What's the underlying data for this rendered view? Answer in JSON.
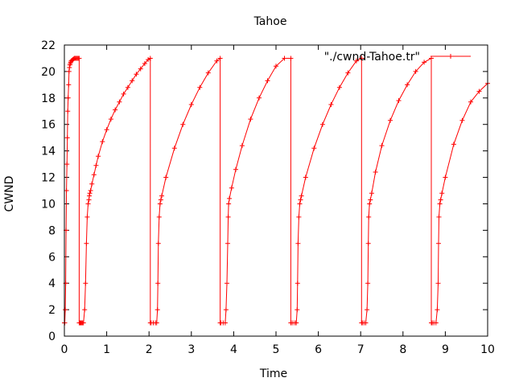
{
  "chart_data": {
    "type": "line",
    "title": "Tahoe",
    "xlabel": "Time",
    "ylabel": "CWND",
    "xlim": [
      0,
      10
    ],
    "ylim": [
      0,
      22
    ],
    "x_ticks": [
      "0",
      "1",
      "2",
      "3",
      "4",
      "5",
      "6",
      "7",
      "8",
      "9",
      "10"
    ],
    "y_ticks": [
      "0",
      "2",
      "4",
      "6",
      "8",
      "10",
      "12",
      "14",
      "16",
      "18",
      "20",
      "22"
    ],
    "grid": false,
    "legend_position": "top-right",
    "series": [
      {
        "name": "\"./cwnd-Tahoe.tr\"",
        "color": "#ff0000",
        "marker": "plus",
        "x": [
          0.0,
          0.01,
          0.02,
          0.03,
          0.04,
          0.05,
          0.06,
          0.07,
          0.08,
          0.09,
          0.1,
          0.11,
          0.12,
          0.13,
          0.14,
          0.15,
          0.16,
          0.18,
          0.2,
          0.22,
          0.24,
          0.26,
          0.28,
          0.3,
          0.32,
          0.34,
          0.35,
          0.35,
          0.37,
          0.39,
          0.41,
          0.43,
          0.45,
          0.48,
          0.5,
          0.52,
          0.54,
          0.56,
          0.58,
          0.59,
          0.6,
          0.62,
          0.65,
          0.7,
          0.75,
          0.8,
          0.9,
          1.0,
          1.1,
          1.2,
          1.3,
          1.4,
          1.5,
          1.6,
          1.7,
          1.8,
          1.9,
          1.98,
          2.03,
          2.03,
          2.05,
          2.1,
          2.15,
          2.18,
          2.2,
          2.21,
          2.22,
          2.24,
          2.26,
          2.28,
          2.3,
          2.4,
          2.6,
          2.8,
          3.0,
          3.2,
          3.4,
          3.6,
          3.68,
          3.68,
          3.7,
          3.75,
          3.8,
          3.82,
          3.84,
          3.86,
          3.87,
          3.88,
          3.9,
          3.95,
          4.05,
          4.2,
          4.4,
          4.6,
          4.8,
          5.0,
          5.2,
          5.35,
          5.35,
          5.36,
          5.4,
          5.45,
          5.48,
          5.5,
          5.51,
          5.52,
          5.54,
          5.56,
          5.58,
          5.6,
          5.7,
          5.9,
          6.1,
          6.3,
          6.5,
          6.7,
          6.9,
          7.02,
          7.02,
          7.04,
          7.08,
          7.12,
          7.15,
          7.17,
          7.18,
          7.19,
          7.21,
          7.23,
          7.26,
          7.35,
          7.5,
          7.7,
          7.9,
          8.1,
          8.3,
          8.5,
          8.67,
          8.67,
          8.69,
          8.73,
          8.78,
          8.81,
          8.83,
          8.84,
          8.85,
          8.87,
          8.89,
          8.92,
          9.0,
          9.2,
          9.4,
          9.6,
          9.8,
          10.0
        ],
        "y": [
          1,
          1,
          2,
          4,
          8,
          11,
          13,
          15,
          17,
          18,
          19,
          20,
          20.3,
          20.5,
          20.6,
          20.7,
          20.8,
          20.85,
          20.9,
          20.95,
          21,
          21,
          21,
          21,
          21,
          21,
          21,
          1,
          1,
          1,
          1,
          1,
          1,
          2,
          4,
          7,
          9,
          10,
          10.3,
          10.6,
          10.8,
          11,
          11.5,
          12.2,
          12.9,
          13.6,
          14.7,
          15.6,
          16.4,
          17.1,
          17.7,
          18.3,
          18.8,
          19.3,
          19.8,
          20.2,
          20.6,
          20.9,
          21,
          1,
          1,
          1,
          1,
          1,
          2,
          4,
          7,
          9,
          10,
          10.3,
          10.6,
          12.0,
          14.2,
          16.0,
          17.5,
          18.8,
          19.9,
          20.8,
          21,
          1,
          1,
          1,
          1,
          2,
          4,
          7,
          9,
          10,
          10.4,
          11.2,
          12.6,
          14.4,
          16.4,
          18.0,
          19.3,
          20.4,
          21.0,
          21,
          1,
          1,
          1,
          1,
          1,
          2,
          4,
          7,
          9,
          10,
          10.3,
          10.6,
          12.0,
          14.2,
          16.0,
          17.5,
          18.8,
          19.9,
          20.8,
          21,
          1,
          1,
          1,
          1,
          2,
          4,
          7,
          9,
          10,
          10.3,
          10.8,
          12.4,
          14.4,
          16.3,
          17.8,
          19.0,
          20.0,
          20.7,
          21,
          1,
          1,
          1,
          1,
          2,
          4,
          7,
          9,
          10,
          10.3,
          10.8,
          12.0,
          14.5,
          16.3,
          17.7,
          18.5,
          19.1
        ]
      }
    ]
  }
}
